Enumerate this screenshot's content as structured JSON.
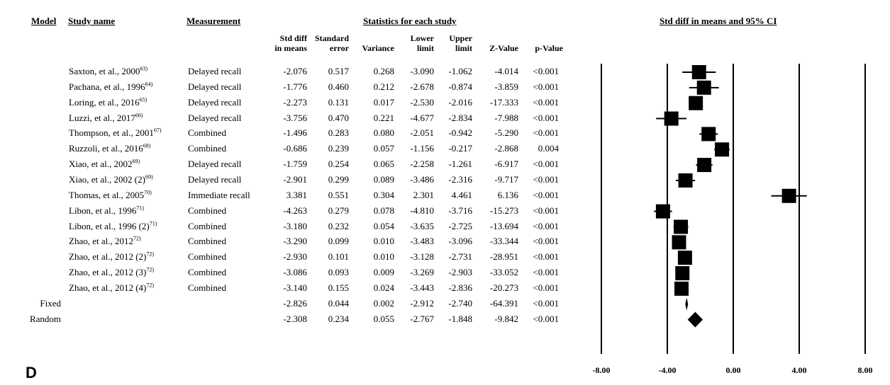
{
  "headers": {
    "model": "Model",
    "study_name": "Study name",
    "measurement": "Measurement",
    "stats_group": "Statistics for each study",
    "plot_title": "Std diff in means and 95% CI",
    "col_smd": [
      "Std diff",
      "in means"
    ],
    "col_se": [
      "Standard",
      "error"
    ],
    "col_var": [
      "",
      "Variance"
    ],
    "col_lower": [
      "Lower",
      "limit"
    ],
    "col_upper": [
      "Upper",
      "limit"
    ],
    "col_z": [
      "",
      "Z-Value"
    ],
    "col_p": [
      "",
      "p-Value"
    ]
  },
  "panel_label": "D",
  "rows": [
    {
      "study": "Saxton, et al., 2000",
      "ref": "63)",
      "measurement": "Delayed recall",
      "smd": "-2.076",
      "se": "0.517",
      "var": "0.268",
      "lower": "-3.090",
      "upper": "-1.062",
      "z": "-4.014",
      "p": "<0.001"
    },
    {
      "study": "Pachana, et al., 1996",
      "ref": "64)",
      "measurement": "Delayed recall",
      "smd": "-1.776",
      "se": "0.460",
      "var": "0.212",
      "lower": "-2.678",
      "upper": "-0.874",
      "z": "-3.859",
      "p": "<0.001"
    },
    {
      "study": "Loring, et al., 2016",
      "ref": "65)",
      "measurement": "Delayed recall",
      "smd": "-2.273",
      "se": "0.131",
      "var": "0.017",
      "lower": "-2.530",
      "upper": "-2.016",
      "z": "-17.333",
      "p": "<0.001"
    },
    {
      "study": "Luzzi, et al., 2017",
      "ref": "66)",
      "measurement": "Delayed recall",
      "smd": "-3.756",
      "se": "0.470",
      "var": "0.221",
      "lower": "-4.677",
      "upper": "-2.834",
      "z": "-7.988",
      "p": "<0.001"
    },
    {
      "study": "Thompson, et al., 2001",
      "ref": "67)",
      "measurement": "Combined",
      "smd": "-1.496",
      "se": "0.283",
      "var": "0.080",
      "lower": "-2.051",
      "upper": "-0.942",
      "z": "-5.290",
      "p": "<0.001"
    },
    {
      "study": "Ruzzoli, et al., 2016",
      "ref": "68)",
      "measurement": "Combined",
      "smd": "-0.686",
      "se": "0.239",
      "var": "0.057",
      "lower": "-1.156",
      "upper": "-0.217",
      "z": "-2.868",
      "p": "0.004"
    },
    {
      "study": "Xiao, et al., 2002",
      "ref": "69)",
      "measurement": "Delayed recall",
      "smd": "-1.759",
      "se": "0.254",
      "var": "0.065",
      "lower": "-2.258",
      "upper": "-1.261",
      "z": "-6.917",
      "p": "<0.001"
    },
    {
      "study": "Xiao, et al., 2002 (2)",
      "ref": "69)",
      "measurement": "Delayed recall",
      "smd": "-2.901",
      "se": "0.299",
      "var": "0.089",
      "lower": "-3.486",
      "upper": "-2.316",
      "z": "-9.717",
      "p": "<0.001"
    },
    {
      "study": "Thomas, et al., 2005",
      "ref": "70)",
      "measurement": "Immediate recall",
      "smd": "3.381",
      "se": "0.551",
      "var": "0.304",
      "lower": "2.301",
      "upper": "4.461",
      "z": "6.136",
      "p": "<0.001"
    },
    {
      "study": "Libon, et al., 1996",
      "ref": "71)",
      "measurement": "Combined",
      "smd": "-4.263",
      "se": "0.279",
      "var": "0.078",
      "lower": "-4.810",
      "upper": "-3.716",
      "z": "-15.273",
      "p": "<0.001"
    },
    {
      "study": "Libon, et al., 1996 (2)",
      "ref": "71)",
      "measurement": "Combined",
      "smd": "-3.180",
      "se": "0.232",
      "var": "0.054",
      "lower": "-3.635",
      "upper": "-2.725",
      "z": "-13.694",
      "p": "<0.001"
    },
    {
      "study": "Zhao, et al., 2012",
      "ref": "72)",
      "measurement": "Combined",
      "smd": "-3.290",
      "se": "0.099",
      "var": "0.010",
      "lower": "-3.483",
      "upper": "-3.096",
      "z": "-33.344",
      "p": "<0.001"
    },
    {
      "study": "Zhao, et al., 2012 (2)",
      "ref": "72)",
      "measurement": "Combined",
      "smd": "-2.930",
      "se": "0.101",
      "var": "0.010",
      "lower": "-3.128",
      "upper": "-2.731",
      "z": "-28.951",
      "p": "<0.001"
    },
    {
      "study": "Zhao, et al., 2012 (3)",
      "ref": "72)",
      "measurement": "Combined",
      "smd": "-3.086",
      "se": "0.093",
      "var": "0.009",
      "lower": "-3.269",
      "upper": "-2.903",
      "z": "-33.052",
      "p": "<0.001"
    },
    {
      "study": "Zhao, et al., 2012 (4)",
      "ref": "72)",
      "measurement": "Combined",
      "smd": "-3.140",
      "se": "0.155",
      "var": "0.024",
      "lower": "-3.443",
      "upper": "-2.836",
      "z": "-20.273",
      "p": "<0.001"
    }
  ],
  "summary": [
    {
      "model": "Fixed",
      "smd": "-2.826",
      "se": "0.044",
      "var": "0.002",
      "lower": "-2.912",
      "upper": "-2.740",
      "z": "-64.391",
      "p": "<0.001"
    },
    {
      "model": "Random",
      "smd": "-2.308",
      "se": "0.234",
      "var": "0.055",
      "lower": "-2.767",
      "upper": "-1.848",
      "z": "-9.842",
      "p": "<0.001"
    }
  ],
  "chart_data": {
    "type": "scatter",
    "title": "Std diff in means and 95% CI",
    "xlim": [
      -8,
      8
    ],
    "ticks": [
      -8,
      -4,
      0,
      4,
      8
    ],
    "tick_labels": [
      "-8.00",
      "-4.00",
      "0.00",
      "4.00",
      "8.00"
    ],
    "vertical_lines": [
      -8,
      -4,
      0,
      4,
      8
    ],
    "points": [
      {
        "x": -2.076,
        "lower": -3.09,
        "upper": -1.062
      },
      {
        "x": -1.776,
        "lower": -2.678,
        "upper": -0.874
      },
      {
        "x": -2.273,
        "lower": -2.53,
        "upper": -2.016
      },
      {
        "x": -3.756,
        "lower": -4.677,
        "upper": -2.834
      },
      {
        "x": -1.496,
        "lower": -2.051,
        "upper": -0.942
      },
      {
        "x": -0.686,
        "lower": -1.156,
        "upper": -0.217
      },
      {
        "x": -1.759,
        "lower": -2.258,
        "upper": -1.261
      },
      {
        "x": -2.901,
        "lower": -3.486,
        "upper": -2.316
      },
      {
        "x": 3.381,
        "lower": 2.301,
        "upper": 4.461
      },
      {
        "x": -4.263,
        "lower": -4.81,
        "upper": -3.716
      },
      {
        "x": -3.18,
        "lower": -3.635,
        "upper": -2.725
      },
      {
        "x": -3.29,
        "lower": -3.483,
        "upper": -3.096
      },
      {
        "x": -2.93,
        "lower": -3.128,
        "upper": -2.731
      },
      {
        "x": -3.086,
        "lower": -3.269,
        "upper": -2.903
      },
      {
        "x": -3.14,
        "lower": -3.443,
        "upper": -2.836
      }
    ],
    "diamonds": [
      {
        "x": -2.826,
        "lower": -2.912,
        "upper": -2.74
      },
      {
        "x": -2.308,
        "lower": -2.767,
        "upper": -1.848
      }
    ],
    "colors": {
      "marks": "#000000"
    }
  }
}
